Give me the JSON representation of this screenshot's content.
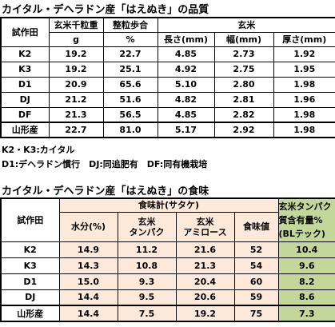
{
  "quality": {
    "title": "カイタル・デヘラドン産「はえぬき」の品質",
    "header": {
      "plot": "試作田",
      "weight": "玄米千粒重",
      "weight_unit": "g",
      "ratio": "整粒歩合",
      "ratio_unit": "%",
      "brown_rice": "玄米",
      "length": "長さ(mm)",
      "width": "幅(mm)",
      "thickness": "厚さ(mm)"
    },
    "rows": [
      [
        "K2",
        "19.2",
        "22.7",
        "4.85",
        "2.73",
        "1.92"
      ],
      [
        "K3",
        "19.2",
        "25.1",
        "4.92",
        "2.75",
        "1.95"
      ],
      [
        "D1",
        "20.9",
        "65.6",
        "5.10",
        "2.80",
        "1.98"
      ],
      [
        "DJ",
        "21.2",
        "51.6",
        "4.82",
        "2.81",
        "1.96"
      ],
      [
        "DF",
        "21.3",
        "56.5",
        "4.85",
        "2.82",
        "1.98"
      ],
      [
        "山形産",
        "22.7",
        "81.0",
        "5.17",
        "2.92",
        "1.98"
      ]
    ]
  },
  "notes": [
    "K2・K3:カイタル",
    "D1:デヘラドン慣行　DJ:同追肥有　DF:同有機栽培"
  ],
  "taste": {
    "title": "カイタル・デヘラドン産「はえぬき」の食味",
    "header": {
      "plot": "試作田",
      "meter": "食味計(サタケ)",
      "moisture": "水分(%)",
      "protein": [
        "玄米",
        "タンパク"
      ],
      "amylose": [
        "玄米",
        "アミロース"
      ],
      "score": "食味値",
      "bl": [
        "玄米タンパク",
        "質含有量%",
        "(BLテック)"
      ]
    },
    "rows": [
      [
        "K2",
        "14.9",
        "11.2",
        "21.6",
        "52",
        "10.4"
      ],
      [
        "K3",
        "14.3",
        "10.8",
        "21.3",
        "54",
        "9.6"
      ],
      [
        "D1",
        "15.0",
        "9.3",
        "20.4",
        "60",
        "8.2"
      ],
      [
        "DJ",
        "14.4",
        "9.5",
        "20.6",
        "59",
        "8.6"
      ],
      [
        "山形産",
        "14.4",
        "7.5",
        "19.2",
        "75",
        "7.3"
      ]
    ]
  }
}
